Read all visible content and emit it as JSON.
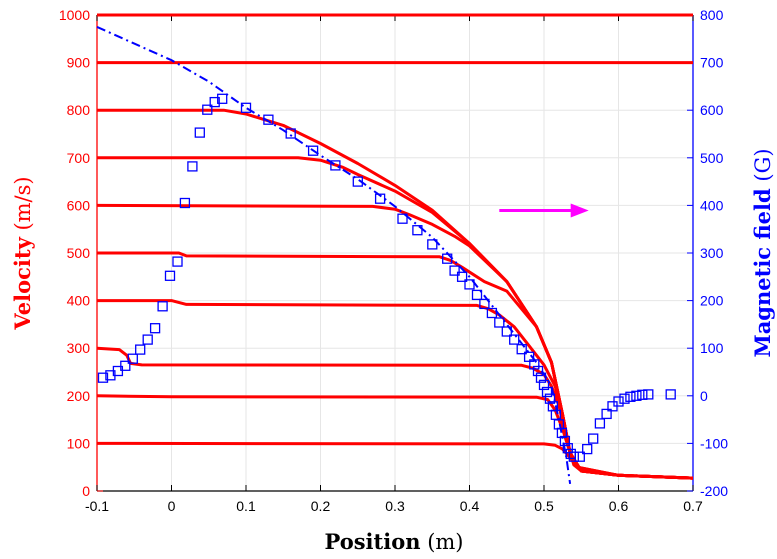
{
  "chart_data": {
    "type": "line",
    "xlabel": "Position",
    "xlabel_unit": "(m)",
    "ylabel": "Velocity",
    "ylabel_unit": "(m/s)",
    "y2label": "Magnetic field",
    "y2label_unit": "(G)",
    "xlim": [
      -0.1,
      0.7
    ],
    "ylim": [
      0,
      1000
    ],
    "y2lim": [
      -200,
      800
    ],
    "grid": true,
    "x_ticks": [
      "-0.1",
      "0",
      "0.1",
      "0.2",
      "0.3",
      "0.4",
      "0.5",
      "0.6",
      "0.7"
    ],
    "y_ticks": [
      "0",
      "100",
      "200",
      "300",
      "400",
      "500",
      "600",
      "700",
      "800",
      "900",
      "1000"
    ],
    "y2_ticks": [
      "-200",
      "-100",
      "0",
      "100",
      "200",
      "300",
      "400",
      "500",
      "600",
      "700",
      "800"
    ],
    "colors": {
      "velocity": "#ff0000",
      "field": "#0000ff",
      "arrow": "#ff00ff"
    },
    "velocity_trajectories": [
      {
        "initial": 1000,
        "points": [
          [
            -0.1,
            1000
          ],
          [
            0.7,
            1000
          ]
        ]
      },
      {
        "initial": 900,
        "points": [
          [
            -0.1,
            900
          ],
          [
            0.7,
            900
          ]
        ]
      },
      {
        "initial": 800,
        "points": [
          [
            -0.1,
            800
          ],
          [
            0.07,
            800
          ],
          [
            0.1,
            792
          ],
          [
            0.15,
            768
          ],
          [
            0.2,
            730
          ],
          [
            0.25,
            688
          ],
          [
            0.3,
            642
          ],
          [
            0.35,
            590
          ],
          [
            0.4,
            520
          ],
          [
            0.45,
            440
          ],
          [
            0.49,
            345
          ],
          [
            0.51,
            270
          ],
          [
            0.525,
            160
          ],
          [
            0.535,
            80
          ],
          [
            0.55,
            42
          ],
          [
            0.6,
            33
          ],
          [
            0.7,
            27
          ]
        ]
      },
      {
        "initial": 700,
        "points": [
          [
            -0.1,
            700
          ],
          [
            0.17,
            700
          ],
          [
            0.2,
            695
          ],
          [
            0.23,
            680
          ],
          [
            0.25,
            665
          ],
          [
            0.3,
            630
          ],
          [
            0.35,
            585
          ],
          [
            0.4,
            520
          ],
          [
            0.45,
            440
          ],
          [
            0.49,
            345
          ],
          [
            0.51,
            270
          ],
          [
            0.525,
            160
          ],
          [
            0.535,
            80
          ],
          [
            0.55,
            42
          ],
          [
            0.6,
            33
          ],
          [
            0.7,
            27
          ]
        ]
      },
      {
        "initial": 600,
        "points": [
          [
            -0.1,
            600
          ],
          [
            0.27,
            598
          ],
          [
            0.3,
            592
          ],
          [
            0.32,
            580
          ],
          [
            0.35,
            560
          ],
          [
            0.38,
            535
          ],
          [
            0.4,
            515
          ],
          [
            0.45,
            440
          ],
          [
            0.49,
            345
          ],
          [
            0.51,
            270
          ],
          [
            0.525,
            160
          ],
          [
            0.535,
            80
          ],
          [
            0.55,
            42
          ],
          [
            0.6,
            33
          ],
          [
            0.7,
            27
          ]
        ]
      },
      {
        "initial": 500,
        "points": [
          [
            -0.1,
            500
          ],
          [
            0.01,
            500
          ],
          [
            0.02,
            494
          ],
          [
            0.36,
            492
          ],
          [
            0.375,
            484
          ],
          [
            0.39,
            470
          ],
          [
            0.42,
            440
          ],
          [
            0.45,
            420
          ],
          [
            0.49,
            345
          ],
          [
            0.51,
            270
          ],
          [
            0.525,
            160
          ],
          [
            0.535,
            80
          ],
          [
            0.55,
            42
          ],
          [
            0.6,
            33
          ],
          [
            0.7,
            27
          ]
        ]
      },
      {
        "initial": 400,
        "points": [
          [
            -0.1,
            400
          ],
          [
            0.0,
            400
          ],
          [
            0.02,
            392
          ],
          [
            0.41,
            390
          ],
          [
            0.425,
            383
          ],
          [
            0.44,
            370
          ],
          [
            0.46,
            345
          ],
          [
            0.48,
            305
          ],
          [
            0.5,
            265
          ],
          [
            0.515,
            220
          ],
          [
            0.525,
            160
          ],
          [
            0.535,
            80
          ],
          [
            0.55,
            42
          ],
          [
            0.6,
            33
          ],
          [
            0.7,
            27
          ]
        ]
      },
      {
        "initial": 300,
        "points": [
          [
            -0.1,
            300
          ],
          [
            -0.07,
            297
          ],
          [
            -0.06,
            285
          ],
          [
            -0.055,
            268
          ],
          [
            -0.04,
            265
          ],
          [
            0.47,
            264
          ],
          [
            0.485,
            258
          ],
          [
            0.5,
            245
          ],
          [
            0.51,
            220
          ],
          [
            0.52,
            180
          ],
          [
            0.53,
            110
          ],
          [
            0.54,
            55
          ],
          [
            0.55,
            42
          ],
          [
            0.6,
            33
          ],
          [
            0.7,
            27
          ]
        ]
      },
      {
        "initial": 200,
        "points": [
          [
            -0.1,
            200
          ],
          [
            0.0,
            198
          ],
          [
            0.49,
            197
          ],
          [
            0.505,
            192
          ],
          [
            0.515,
            170
          ],
          [
            0.525,
            130
          ],
          [
            0.535,
            80
          ],
          [
            0.545,
            50
          ],
          [
            0.6,
            33
          ],
          [
            0.7,
            27
          ]
        ]
      },
      {
        "initial": 100,
        "points": [
          [
            -0.1,
            100
          ],
          [
            0.5,
            99
          ],
          [
            0.515,
            96
          ],
          [
            0.525,
            88
          ],
          [
            0.535,
            70
          ],
          [
            0.545,
            50
          ],
          [
            0.6,
            33
          ],
          [
            0.7,
            27
          ]
        ]
      }
    ],
    "field_model_line": {
      "name": "",
      "style": "dash-dot",
      "points": [
        [
          -0.1,
          775
        ],
        [
          -0.05,
          740
        ],
        [
          0.0,
          705
        ],
        [
          0.05,
          660
        ],
        [
          0.1,
          605
        ],
        [
          0.15,
          558
        ],
        [
          0.2,
          505
        ],
        [
          0.25,
          455
        ],
        [
          0.3,
          398
        ],
        [
          0.35,
          333
        ],
        [
          0.4,
          250
        ],
        [
          0.45,
          150
        ],
        [
          0.49,
          70
        ],
        [
          0.51,
          20
        ],
        [
          0.52,
          -50
        ],
        [
          0.53,
          -130
        ],
        [
          0.535,
          -185
        ]
      ]
    },
    "field_measured": [
      [
        -0.092,
        38
      ],
      [
        -0.082,
        43
      ],
      [
        -0.072,
        52
      ],
      [
        -0.062,
        63
      ],
      [
        -0.052,
        78
      ],
      [
        -0.042,
        97
      ],
      [
        -0.032,
        118
      ],
      [
        -0.022,
        142
      ],
      [
        -0.012,
        188
      ],
      [
        -0.002,
        252
      ],
      [
        0.008,
        282
      ],
      [
        0.018,
        405
      ],
      [
        0.028,
        482
      ],
      [
        0.038,
        553
      ],
      [
        0.048,
        601
      ],
      [
        0.058,
        617
      ],
      [
        0.068,
        624
      ],
      [
        0.1,
        605
      ],
      [
        0.13,
        580
      ],
      [
        0.16,
        551
      ],
      [
        0.19,
        515
      ],
      [
        0.22,
        484
      ],
      [
        0.25,
        450
      ],
      [
        0.28,
        414
      ],
      [
        0.31,
        372
      ],
      [
        0.33,
        348
      ],
      [
        0.35,
        318
      ],
      [
        0.37,
        288
      ],
      [
        0.38,
        263
      ],
      [
        0.39,
        250
      ],
      [
        0.4,
        234
      ],
      [
        0.41,
        212
      ],
      [
        0.42,
        193
      ],
      [
        0.43,
        174
      ],
      [
        0.44,
        154
      ],
      [
        0.45,
        135
      ],
      [
        0.46,
        118
      ],
      [
        0.47,
        98
      ],
      [
        0.48,
        82
      ],
      [
        0.487,
        66
      ],
      [
        0.492,
        52
      ],
      [
        0.496,
        38
      ],
      [
        0.5,
        23
      ],
      [
        0.504,
        8
      ],
      [
        0.508,
        -6
      ],
      [
        0.512,
        -22
      ],
      [
        0.516,
        -40
      ],
      [
        0.52,
        -60
      ],
      [
        0.524,
        -78
      ],
      [
        0.528,
        -95
      ],
      [
        0.532,
        -110
      ],
      [
        0.536,
        -122
      ],
      [
        0.54,
        -128
      ],
      [
        0.548,
        -128
      ],
      [
        0.558,
        -112
      ],
      [
        0.566,
        -90
      ],
      [
        0.575,
        -58
      ],
      [
        0.584,
        -38
      ],
      [
        0.592,
        -22
      ],
      [
        0.6,
        -12
      ],
      [
        0.608,
        -6
      ],
      [
        0.616,
        -2
      ],
      [
        0.624,
        0
      ],
      [
        0.632,
        2
      ],
      [
        0.64,
        3
      ],
      [
        0.67,
        3
      ]
    ],
    "annotation": {
      "type": "arrow",
      "direction": "right",
      "meaning": "points to right axis",
      "from": [
        0.44,
        625
      ],
      "to": [
        0.56,
        625
      ]
    }
  }
}
